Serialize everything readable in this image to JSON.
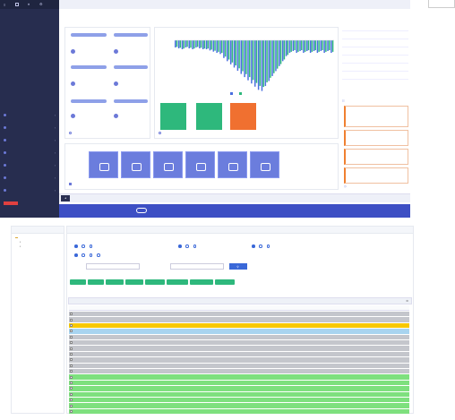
{
  "window": {
    "top_title": "",
    "top_right": ""
  },
  "sidebar": {
    "logo_text": "",
    "items": [
      {
        "label": ""
      },
      {
        "label": ""
      },
      {
        "label": ""
      },
      {
        "label": ""
      },
      {
        "label": ""
      },
      {
        "label": ""
      },
      {
        "label": ""
      }
    ],
    "footer_text": ""
  },
  "dashboard": {
    "cards": [
      {
        "label": "",
        "value": ""
      },
      {
        "label": "",
        "value": ""
      },
      {
        "label": "",
        "value": ""
      },
      {
        "label": "",
        "value": ""
      },
      {
        "label": "",
        "value": ""
      },
      {
        "label": "",
        "value": ""
      },
      {
        "label": "",
        "value": ""
      },
      {
        "label": "",
        "value": ""
      }
    ],
    "cards_caption": "",
    "chart_caption": "",
    "chart_legend": [
      "",
      ""
    ],
    "stats": [
      {
        "label": "",
        "value": "",
        "color": "#2eb87c"
      },
      {
        "label": "",
        "value": "",
        "color": "#2eb87c"
      },
      {
        "label": "",
        "value": "",
        "color": "#f07030"
      }
    ],
    "tiles": [
      {
        "label": ""
      },
      {
        "label": ""
      },
      {
        "label": ""
      },
      {
        "label": ""
      },
      {
        "label": ""
      },
      {
        "label": ""
      }
    ],
    "tiles_caption": "",
    "bottom_notice": "",
    "bottom_right": ""
  },
  "right_panel": {
    "rows": [
      [
        "",
        "",
        "",
        ""
      ],
      [
        "",
        "",
        "",
        ""
      ],
      [
        "",
        "",
        "",
        ""
      ],
      [
        "",
        "",
        "",
        ""
      ],
      [
        "",
        "",
        "",
        ""
      ],
      [
        "",
        "",
        "",
        ""
      ],
      [
        "",
        "",
        "",
        ""
      ]
    ],
    "tabs": [
      "",
      "",
      "",
      ""
    ],
    "section_title": "",
    "section_more": "",
    "alerts": [
      {
        "text": ""
      },
      {
        "text": ""
      },
      {
        "text": ""
      },
      {
        "text": ""
      }
    ],
    "bottom_title": "",
    "bottom_more": ""
  },
  "page2": {
    "tree_header": "",
    "tree_items": [
      "",
      "",
      ""
    ],
    "list_header": "",
    "filters": {
      "row1_label": "",
      "row1_opts": [
        "",
        "",
        ""
      ],
      "row2_label": "",
      "row2_opts": [
        "",
        "",
        ""
      ],
      "row3_label": "",
      "row3_opts": [
        "",
        "",
        ""
      ],
      "row4_label": "",
      "row4_opts": [
        "",
        "",
        "",
        ""
      ],
      "input1_label": "",
      "input2_label": "",
      "search_label": ""
    },
    "buttons": [
      "",
      "",
      "",
      "",
      "",
      "",
      "",
      ""
    ],
    "legend": "",
    "table_title": "",
    "columns": [
      "",
      "",
      "",
      "",
      "",
      "",
      "",
      "",
      "",
      "",
      "",
      "",
      "",
      ""
    ],
    "rows": [
      {
        "status": "grey",
        "cells": [
          "",
          "",
          "",
          "",
          "",
          "",
          "",
          "",
          "",
          "",
          "",
          "",
          "",
          ""
        ]
      },
      {
        "status": "grey",
        "cells": [
          "",
          "",
          "",
          "",
          "",
          "",
          "",
          "",
          "",
          "",
          "",
          "",
          "",
          ""
        ]
      },
      {
        "status": "yellow",
        "cells": [
          "",
          "",
          "",
          "",
          "",
          "",
          "",
          "",
          "",
          "",
          "",
          "",
          "",
          ""
        ]
      },
      {
        "status": "blue",
        "cells": [
          "",
          "",
          "",
          "",
          "",
          "",
          "",
          "",
          "",
          "",
          "",
          "",
          "",
          ""
        ]
      },
      {
        "status": "grey",
        "cells": [
          "",
          "",
          "",
          "",
          "",
          "",
          "",
          "",
          "",
          "",
          "",
          "",
          "",
          ""
        ]
      },
      {
        "status": "grey",
        "cells": [
          "",
          "",
          "",
          "",
          "",
          "",
          "",
          "",
          "",
          "",
          "",
          "",
          "",
          ""
        ]
      },
      {
        "status": "grey",
        "cells": [
          "",
          "",
          "",
          "",
          "",
          "",
          "",
          "",
          "",
          "",
          "",
          "",
          "",
          ""
        ]
      },
      {
        "status": "grey",
        "cells": [
          "",
          "",
          "",
          "",
          "",
          "",
          "",
          "",
          "",
          "",
          "",
          "",
          "",
          ""
        ]
      },
      {
        "status": "grey",
        "cells": [
          "",
          "",
          "",
          "",
          "",
          "",
          "",
          "",
          "",
          "",
          "",
          "",
          "",
          ""
        ]
      },
      {
        "status": "grey",
        "cells": [
          "",
          "",
          "",
          "",
          "",
          "",
          "",
          "",
          "",
          "",
          "",
          "",
          "",
          ""
        ]
      },
      {
        "status": "grey",
        "cells": [
          "",
          "",
          "",
          "",
          "",
          "",
          "",
          "",
          "",
          "",
          "",
          "",
          "",
          ""
        ]
      },
      {
        "status": "green",
        "cells": [
          "",
          "",
          "",
          "",
          "",
          "",
          "",
          "",
          "",
          "",
          "",
          "",
          "",
          ""
        ]
      },
      {
        "status": "green",
        "cells": [
          "",
          "",
          "",
          "",
          "",
          "",
          "",
          "",
          "",
          "",
          "",
          "",
          "",
          ""
        ]
      },
      {
        "status": "green",
        "cells": [
          "",
          "",
          "",
          "",
          "",
          "",
          "",
          "",
          "",
          "",
          "",
          "",
          "",
          ""
        ]
      },
      {
        "status": "green",
        "cells": [
          "",
          "",
          "",
          "",
          "",
          "",
          "",
          "",
          "",
          "",
          "",
          "",
          "",
          ""
        ]
      },
      {
        "status": "green",
        "cells": [
          "",
          "",
          "",
          "",
          "",
          "",
          "",
          "",
          "",
          "",
          "",
          "",
          "",
          ""
        ]
      },
      {
        "status": "green",
        "cells": [
          "",
          "",
          "",
          "",
          "",
          "",
          "",
          "",
          "",
          "",
          "",
          "",
          "",
          ""
        ]
      },
      {
        "status": "green",
        "cells": [
          "",
          "",
          "",
          "",
          "",
          "",
          "",
          "",
          "",
          "",
          "",
          "",
          "",
          ""
        ]
      }
    ],
    "page_info": ""
  },
  "colors": {
    "grey": "#c4c6cc",
    "yellow": "#f8c800",
    "blue": "#a8d4f0",
    "green": "#7ee07e"
  }
}
